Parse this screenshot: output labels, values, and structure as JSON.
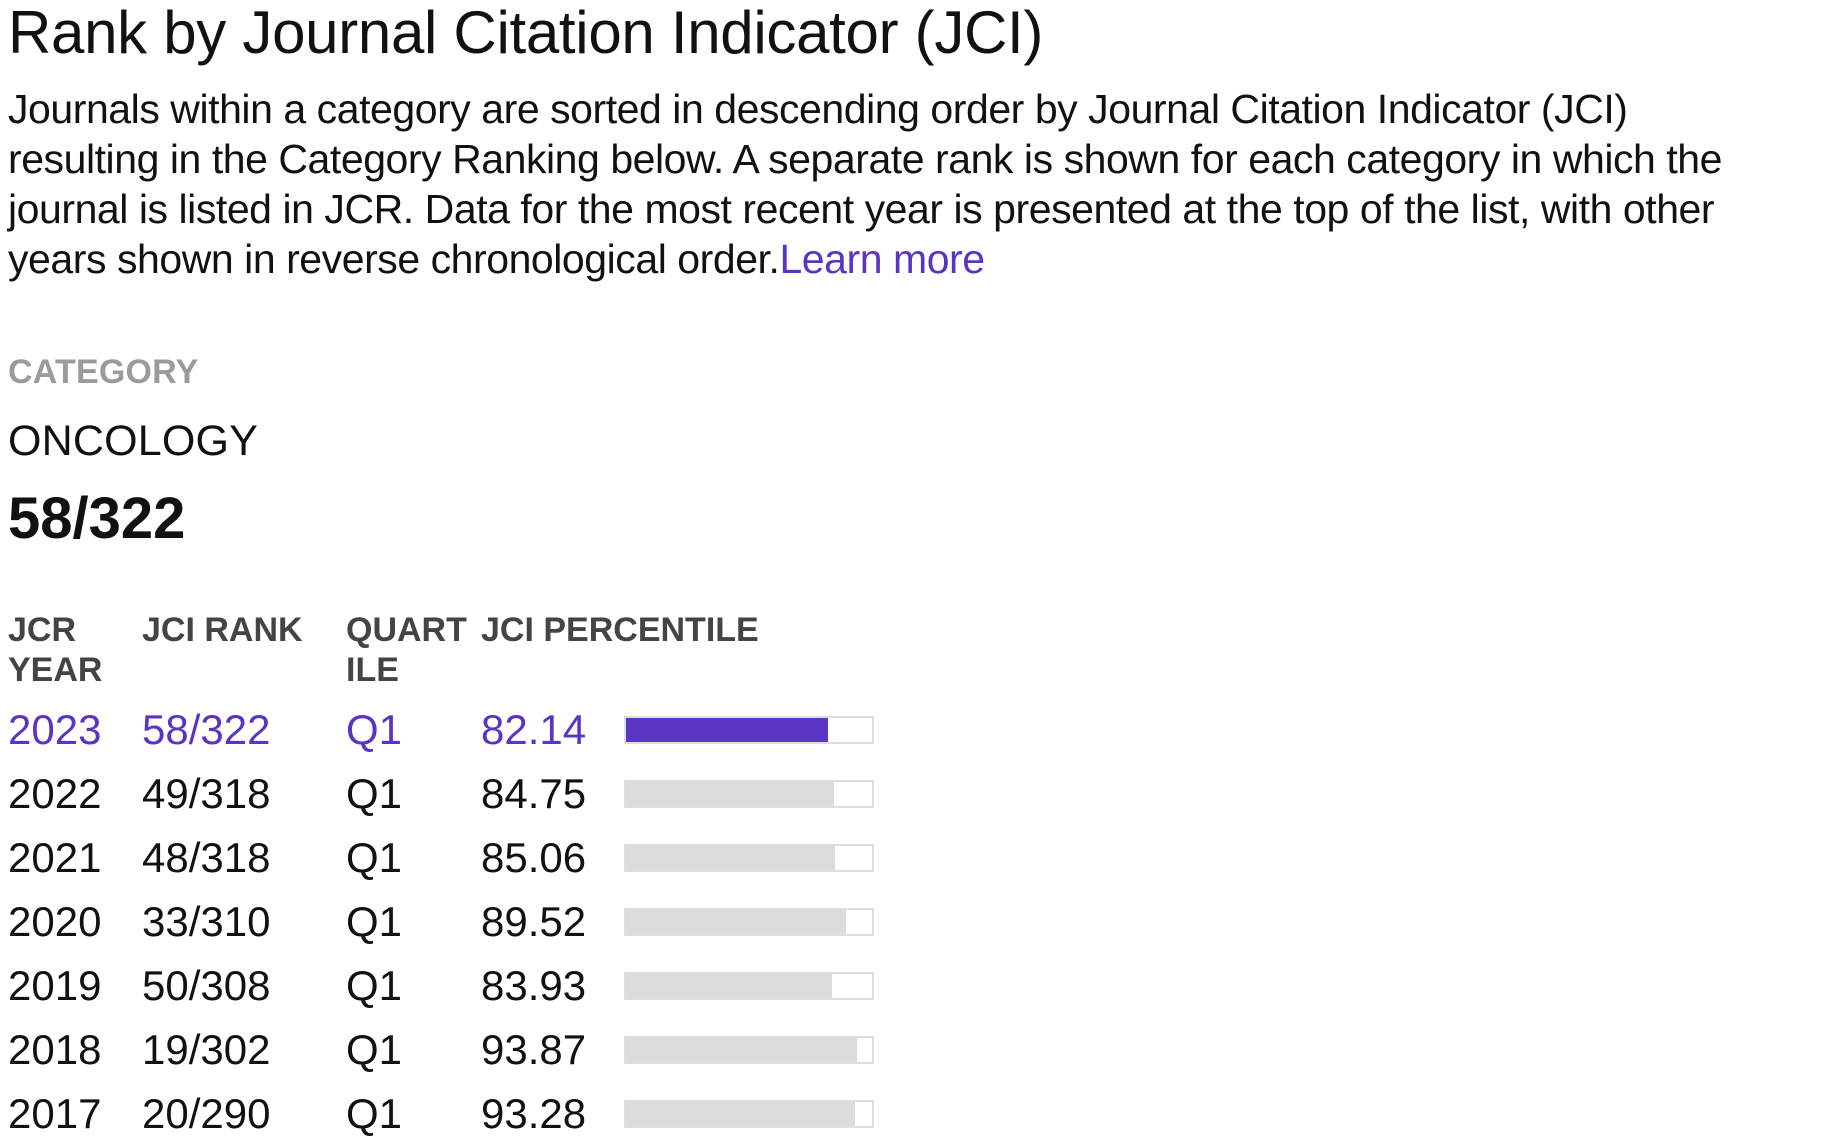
{
  "header": {
    "title": "Rank by Journal Citation Indicator (JCI)",
    "description_lines": [
      "Journals within a category are sorted in descending order by Journal Citation Indicator (JCI)",
      "resulting in the Category Ranking below. A separate rank is shown for each category in which the",
      "journal is listed in JCR. Data for the most recent year is presented at the top of the list, with other",
      "years shown in reverse chronological order."
    ],
    "learn_more": "Learn more"
  },
  "category": {
    "label": "CATEGORY",
    "name": "ONCOLOGY",
    "rank": "58/322"
  },
  "table": {
    "headers": {
      "year": [
        "JCR",
        "YEAR"
      ],
      "rank": "JCI RANK",
      "quartile": [
        "QUART",
        "ILE"
      ],
      "percentile": "JCI PERCENTILE"
    },
    "rows": [
      {
        "year": "2023",
        "rank": "58/322",
        "quartile": "Q1",
        "percentile": "82.14",
        "percentile_value": 82.14
      },
      {
        "year": "2022",
        "rank": "49/318",
        "quartile": "Q1",
        "percentile": "84.75",
        "percentile_value": 84.75
      },
      {
        "year": "2021",
        "rank": "48/318",
        "quartile": "Q1",
        "percentile": "85.06",
        "percentile_value": 85.06
      },
      {
        "year": "2020",
        "rank": "33/310",
        "quartile": "Q1",
        "percentile": "89.52",
        "percentile_value": 89.52
      },
      {
        "year": "2019",
        "rank": "50/308",
        "quartile": "Q1",
        "percentile": "83.93",
        "percentile_value": 83.93
      },
      {
        "year": "2018",
        "rank": "19/302",
        "quartile": "Q1",
        "percentile": "93.87",
        "percentile_value": 93.87
      },
      {
        "year": "2017",
        "rank": "20/290",
        "quartile": "Q1",
        "percentile": "93.28",
        "percentile_value": 93.28
      }
    ]
  },
  "colors": {
    "accent": "#5a35c4",
    "bar_inactive": "#dcdcdc"
  }
}
